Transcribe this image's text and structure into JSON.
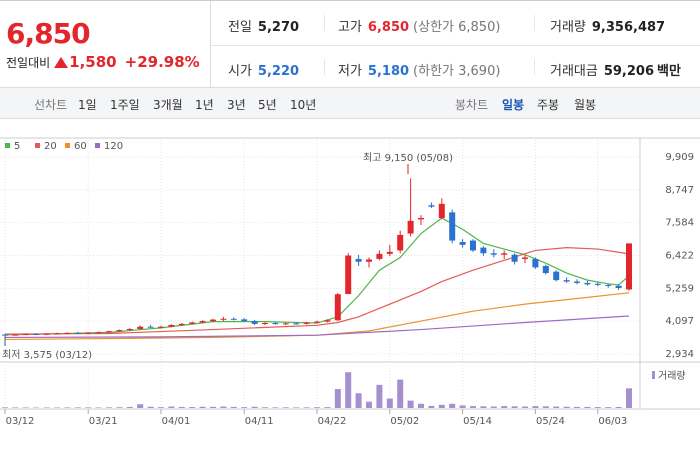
{
  "quote": {
    "price": "6,850",
    "change_label": "전일대비",
    "change": "1,580",
    "change_pct": "+29.98%",
    "stats": [
      {
        "label": "전일",
        "value": "5,270"
      },
      {
        "label": "고가",
        "value": "6,850",
        "note": "(상한가 6,850)"
      },
      {
        "label": "거래량",
        "value": "9,356,487"
      },
      {
        "label": "시가",
        "value": "5,220"
      },
      {
        "label": "저가",
        "value": "5,180",
        "note": "(하한가 3,690)"
      },
      {
        "label": "거래대금",
        "value": "59,206",
        "unit": "백만"
      }
    ]
  },
  "tabs": {
    "line_label": "선차트",
    "line_periods": [
      "1일",
      "1주일",
      "3개월",
      "1년",
      "3년",
      "5년",
      "10년"
    ],
    "candle_label": "봉차트",
    "candle_periods": [
      "일봉",
      "주봉",
      "월봉"
    ],
    "active": "일봉"
  },
  "chart_data": {
    "type": "candlestick",
    "categories": [
      "03/12",
      null,
      null,
      null,
      null,
      null,
      null,
      null,
      "03/21",
      null,
      null,
      null,
      null,
      null,
      null,
      "04/01",
      null,
      null,
      null,
      null,
      null,
      null,
      null,
      "04/11",
      null,
      null,
      null,
      null,
      null,
      null,
      "04/22",
      null,
      null,
      null,
      null,
      null,
      null,
      "05/02",
      null,
      null,
      null,
      null,
      null,
      null,
      "05/14",
      null,
      null,
      null,
      null,
      null,
      null,
      "05/24",
      null,
      null,
      null,
      null,
      null,
      "06/03",
      null,
      null,
      null
    ],
    "candles": [
      [
        3620,
        3650,
        3575,
        3600
      ],
      [
        3600,
        3640,
        3590,
        3620
      ],
      [
        3620,
        3660,
        3600,
        3640
      ],
      [
        3640,
        3670,
        3610,
        3630
      ],
      [
        3630,
        3660,
        3600,
        3650
      ],
      [
        3650,
        3690,
        3630,
        3660
      ],
      [
        3660,
        3700,
        3640,
        3680
      ],
      [
        3680,
        3720,
        3650,
        3670
      ],
      [
        3670,
        3700,
        3640,
        3690
      ],
      [
        3690,
        3730,
        3660,
        3700
      ],
      [
        3700,
        3760,
        3680,
        3740
      ],
      [
        3740,
        3800,
        3720,
        3780
      ],
      [
        3780,
        3850,
        3750,
        3820
      ],
      [
        3820,
        3950,
        3800,
        3900
      ],
      [
        3900,
        3960,
        3860,
        3880
      ],
      [
        3880,
        3930,
        3850,
        3900
      ],
      [
        3900,
        3990,
        3880,
        3960
      ],
      [
        3960,
        4030,
        3930,
        4000
      ],
      [
        4000,
        4080,
        3980,
        4050
      ],
      [
        4050,
        4130,
        4020,
        4100
      ],
      [
        4100,
        4180,
        4060,
        4150
      ],
      [
        4150,
        4250,
        4100,
        4180
      ],
      [
        4180,
        4230,
        4120,
        4160
      ],
      [
        4160,
        4200,
        4080,
        4100
      ],
      [
        4100,
        4140,
        3960,
        4000
      ],
      [
        4000,
        4060,
        3960,
        4030
      ],
      [
        4030,
        4080,
        3980,
        3990
      ],
      [
        3990,
        4040,
        3950,
        4020
      ],
      [
        4020,
        4060,
        3970,
        4000
      ],
      [
        4000,
        4070,
        3980,
        4050
      ],
      [
        4050,
        4110,
        4020,
        4080
      ],
      [
        4080,
        4160,
        4050,
        4130
      ],
      [
        4130,
        5100,
        4100,
        5050
      ],
      [
        5060,
        6500,
        5050,
        6420
      ],
      [
        6300,
        6450,
        6050,
        6200
      ],
      [
        6200,
        6350,
        6000,
        6280
      ],
      [
        6300,
        6600,
        6250,
        6480
      ],
      [
        6480,
        6800,
        6400,
        6550
      ],
      [
        6600,
        7300,
        6500,
        7150
      ],
      [
        7200,
        9150,
        7100,
        7650
      ],
      [
        7700,
        7850,
        7500,
        7750
      ],
      [
        8200,
        8300,
        8100,
        8150
      ],
      [
        7750,
        8450,
        7700,
        8250
      ],
      [
        7950,
        8050,
        6850,
        6950
      ],
      [
        6900,
        7000,
        6700,
        6800
      ],
      [
        6950,
        7000,
        6550,
        6600
      ],
      [
        6700,
        6750,
        6400,
        6500
      ],
      [
        6500,
        6650,
        6350,
        6450
      ],
      [
        6450,
        6600,
        6300,
        6500
      ],
      [
        6450,
        6500,
        6100,
        6200
      ],
      [
        6300,
        6450,
        6150,
        6350
      ],
      [
        6300,
        6350,
        5950,
        6000
      ],
      [
        6050,
        6100,
        5750,
        5800
      ],
      [
        5850,
        5900,
        5500,
        5550
      ],
      [
        5550,
        5650,
        5450,
        5500
      ],
      [
        5500,
        5580,
        5400,
        5450
      ],
      [
        5450,
        5520,
        5360,
        5400
      ],
      [
        5420,
        5480,
        5330,
        5380
      ],
      [
        5380,
        5420,
        5280,
        5350
      ],
      [
        5350,
        5400,
        5200,
        5270
      ],
      [
        5220,
        6850,
        5180,
        6850
      ]
    ],
    "up_color": "#e3262b",
    "down_color": "#2a72cf",
    "ma_series": [
      {
        "name": "5",
        "color": "#4db848",
        "x": [
          0,
          5,
          10,
          15,
          20,
          25,
          30,
          32,
          34,
          36,
          38,
          40,
          42,
          44,
          46,
          48,
          50,
          52,
          54,
          56,
          58,
          59,
          60
        ],
        "values": [
          3610,
          3650,
          3700,
          3860,
          4080,
          4080,
          4030,
          4250,
          5000,
          5900,
          6350,
          7200,
          7750,
          7350,
          6850,
          6650,
          6450,
          6150,
          5800,
          5550,
          5420,
          5380,
          5700
        ]
      },
      {
        "name": "20",
        "color": "#e55b55",
        "x": [
          0,
          10,
          20,
          30,
          32,
          34,
          36,
          38,
          40,
          42,
          45,
          48,
          51,
          54,
          57,
          60
        ],
        "values": [
          3640,
          3660,
          3800,
          3950,
          4050,
          4250,
          4550,
          4850,
          5150,
          5500,
          5900,
          6250,
          6600,
          6700,
          6650,
          6480
        ]
      },
      {
        "name": "60",
        "color": "#f0902a",
        "x": [
          0,
          10,
          20,
          30,
          35,
          40,
          45,
          50,
          55,
          60
        ],
        "values": [
          3450,
          3480,
          3520,
          3600,
          3750,
          4100,
          4450,
          4700,
          4900,
          5100
        ]
      },
      {
        "name": "120",
        "color": "#9b6cc4",
        "x": [
          0,
          15,
          30,
          40,
          50,
          60
        ],
        "values": [
          3520,
          3540,
          3600,
          3800,
          4050,
          4280
        ]
      }
    ],
    "ylim": [
      2934,
      9909
    ],
    "yticks": [
      {
        "value": 9909,
        "label": "9,909"
      },
      {
        "value": 8747,
        "label": "8,747"
      },
      {
        "value": 7584,
        "label": "7,584"
      },
      {
        "value": 6422,
        "label": "6,422"
      },
      {
        "value": 5259,
        "label": "5,259"
      },
      {
        "value": 4097,
        "label": "4,097"
      },
      {
        "value": 2934,
        "label": "2,934"
      }
    ],
    "grid": true,
    "annotations": {
      "high": "최고 9,150 (05/08)",
      "low": "최저 3,575 (03/12)"
    },
    "volume": {
      "name": "거래량",
      "color": "#a58fcf",
      "ylim": [
        0,
        19000000
      ],
      "values": [
        300000,
        250000,
        260000,
        220000,
        240000,
        230000,
        260000,
        280000,
        250000,
        240000,
        300000,
        350000,
        500000,
        1800000,
        600000,
        400000,
        700000,
        500000,
        450000,
        600000,
        550000,
        700000,
        500000,
        400000,
        600000,
        350000,
        300000,
        320000,
        280000,
        300000,
        350000,
        400000,
        9000000,
        17000000,
        7000000,
        3000000,
        11000000,
        4500000,
        13500000,
        3500000,
        2000000,
        1000000,
        1500000,
        2000000,
        1200000,
        900000,
        800000,
        700000,
        900000,
        800000,
        700000,
        900000,
        800000,
        700000,
        600000,
        500000,
        500000,
        450000,
        400000,
        500000,
        9356487
      ]
    }
  }
}
